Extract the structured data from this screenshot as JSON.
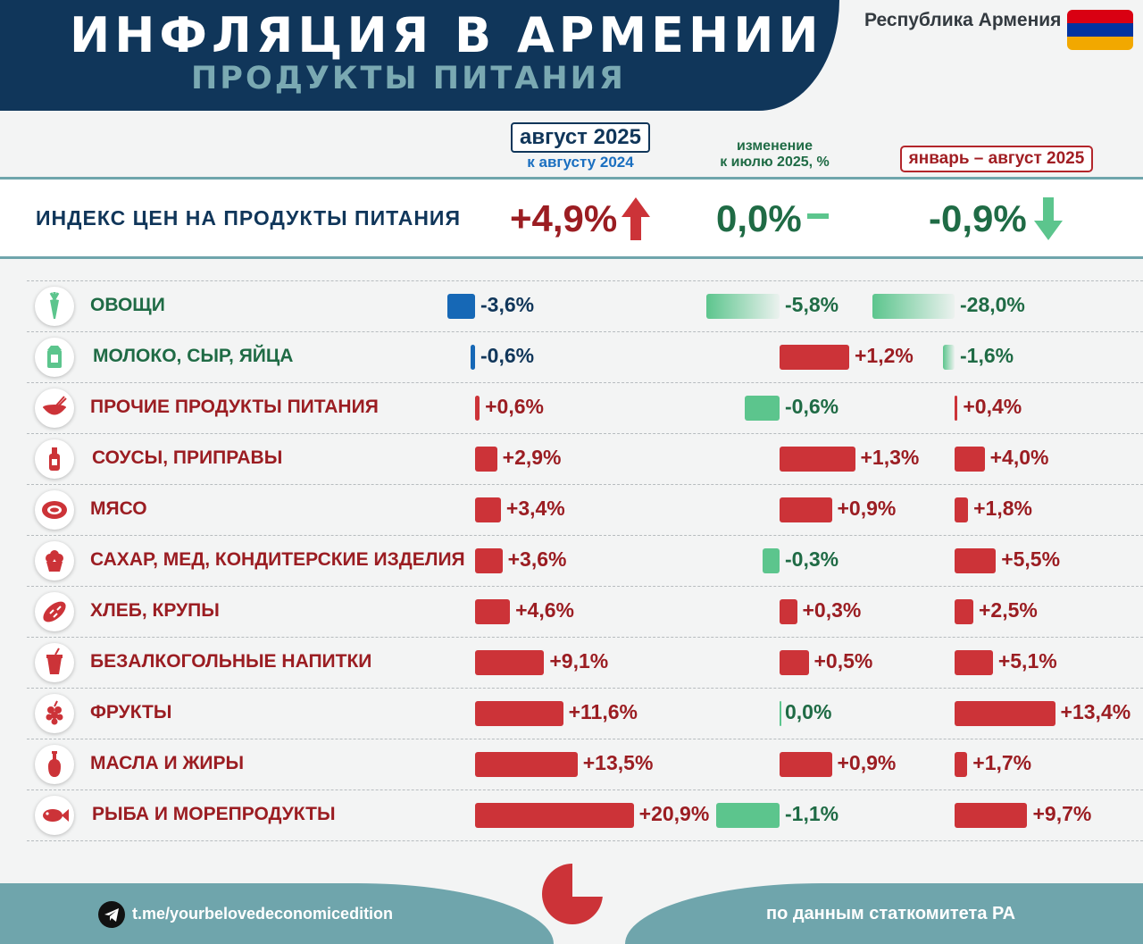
{
  "header": {
    "title": "ИНФЛЯЦИЯ В АРМЕНИИ",
    "subtitle": "ПРОДУКТЫ ПИТАНИЯ",
    "country": "Республика Армения",
    "flag_colors": [
      "#d90012",
      "#0033a0",
      "#f2a800"
    ]
  },
  "columns": {
    "col1_title": "август 2025",
    "col1_subtitle": "к августу 2024",
    "col2_line1": "изменение",
    "col2_line2": "к июлю 2025, %",
    "col3_title": "январь – август 2025"
  },
  "index": {
    "label": "ИНДЕКС ЦЕН НА ПРОДУКТЫ ПИТАНИЯ",
    "yoy": "+4,9%",
    "mom": "0,0%",
    "ytd": "-0,9%"
  },
  "chart_data": {
    "type": "bar",
    "categories": [
      "ОВОЩИ",
      "МОЛОКО, СЫР, ЯЙЦА",
      "ПРОЧИЕ ПРОДУКТЫ ПИТАНИЯ",
      "СОУСЫ, ПРИПРАВЫ",
      "МЯСО",
      "САХАР, МЕД, КОНДИТЕРСКИЕ ИЗДЕЛИЯ",
      "ХЛЕБ, КРУПЫ",
      "БЕЗАЛКОГОЛЬНЫЕ НАПИТКИ",
      "ФРУКТЫ",
      "МАСЛА И ЖИРЫ",
      "РЫБА И МОРЕПРОДУКТЫ"
    ],
    "icons": [
      "carrot-icon",
      "milk-carton-icon",
      "bowl-icon",
      "sauce-bottle-icon",
      "steak-icon",
      "cupcake-icon",
      "bread-icon",
      "soda-cup-icon",
      "grapes-icon",
      "oil-bottle-icon",
      "fish-icon"
    ],
    "series": [
      {
        "name": "август 2025 к августу 2024",
        "values": [
          -3.6,
          -0.6,
          0.6,
          2.9,
          3.4,
          3.6,
          4.6,
          9.1,
          11.6,
          13.5,
          20.9
        ],
        "labels": [
          "-3,6%",
          "-0,6%",
          "+0,6%",
          "+2,9%",
          "+3,4%",
          "+3,6%",
          "+4,6%",
          "+9,1%",
          "+11,6%",
          "+13,5%",
          "+20,9%"
        ]
      },
      {
        "name": "изменение к июлю 2025, %",
        "values": [
          -5.8,
          1.2,
          -0.6,
          1.3,
          0.9,
          -0.3,
          0.3,
          0.5,
          0.0,
          0.9,
          -1.1
        ],
        "labels": [
          "-5,8%",
          "+1,2%",
          "-0,6%",
          "+1,3%",
          "+0,9%",
          "-0,3%",
          "+0,3%",
          "+0,5%",
          "0,0%",
          "+0,9%",
          "-1,1%"
        ]
      },
      {
        "name": "январь – август 2025",
        "values": [
          -28.0,
          -1.6,
          0.4,
          4.0,
          1.8,
          5.5,
          2.5,
          5.1,
          13.4,
          1.7,
          9.7
        ],
        "labels": [
          "-28,0%",
          "-1,6%",
          "+0,4%",
          "+4,0%",
          "+1,8%",
          "+5,5%",
          "+2,5%",
          "+5,1%",
          "+13,4%",
          "+1,7%",
          "+9,7%"
        ]
      }
    ],
    "colors": {
      "positive": "#cc3338",
      "negative_col1": "#1668b6",
      "negative_other": "#5cc58d",
      "label_positive": "#9b1d22",
      "label_negative_col1": "#10365a",
      "label_negative_other": "#1f6b45"
    }
  },
  "footer": {
    "telegram": "t.me/yourbelovedeconomicedition",
    "source": "по данным статкомитета РА"
  }
}
